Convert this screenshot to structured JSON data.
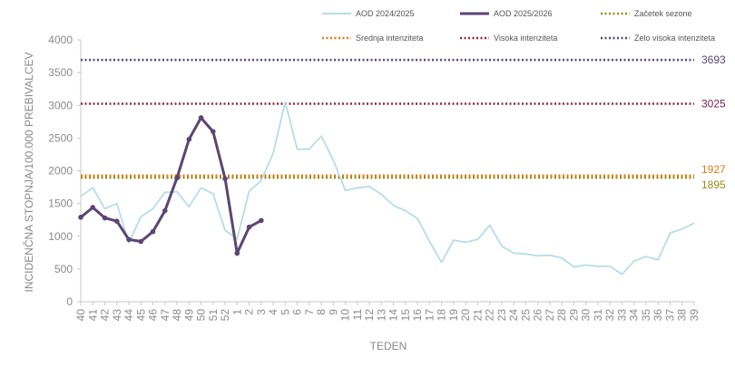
{
  "chart_data": {
    "type": "line",
    "xlabel": "TEDEN",
    "ylabel": "INCIDENČNA  STOPNJA/100.000  PREBIVALCEV",
    "ylim": [
      0,
      4000
    ],
    "yticks": [
      0,
      500,
      1000,
      1500,
      2000,
      2500,
      3000,
      3500,
      4000
    ],
    "grid": false,
    "legend_position": "top",
    "categories": [
      "40",
      "41",
      "42",
      "43",
      "44",
      "45",
      "46",
      "47",
      "48",
      "49",
      "50",
      "51",
      "52",
      "1",
      "2",
      "3",
      "4",
      "5",
      "6",
      "7",
      "8",
      "9",
      "10",
      "11",
      "12",
      "13",
      "14",
      "15",
      "16",
      "17",
      "18",
      "19",
      "20",
      "21",
      "22",
      "23",
      "24",
      "25",
      "26",
      "27",
      "28",
      "29",
      "30",
      "31",
      "32",
      "33",
      "34",
      "35",
      "36",
      "37",
      "38",
      "39"
    ],
    "series": [
      {
        "name": "AOD 2024/2025",
        "color": "#b7dde6",
        "values": [
          1610,
          1740,
          1420,
          1500,
          900,
          1300,
          1420,
          1670,
          1680,
          1450,
          1740,
          1650,
          1090,
          960,
          1690,
          1850,
          2270,
          3050,
          2330,
          2330,
          2530,
          2160,
          1700,
          1740,
          1760,
          1640,
          1470,
          1390,
          1270,
          920,
          600,
          940,
          910,
          950,
          1170,
          850,
          740,
          730,
          700,
          710,
          670,
          530,
          560,
          540,
          540,
          420,
          620,
          690,
          640,
          1050,
          1110,
          1200
        ]
      },
      {
        "name": "AOD 2025/2026",
        "color": "#5a4673",
        "values": [
          1290,
          1440,
          1280,
          1230,
          950,
          920,
          1070,
          1390,
          1890,
          2480,
          2810,
          2600,
          1880,
          740,
          1140,
          1240,
          null,
          null,
          null,
          null,
          null,
          null,
          null,
          null,
          null,
          null,
          null,
          null,
          null,
          null,
          null,
          null,
          null,
          null,
          null,
          null,
          null,
          null,
          null,
          null,
          null,
          null,
          null,
          null,
          null,
          null,
          null,
          null,
          null,
          null,
          null,
          null
        ]
      }
    ],
    "thresholds": [
      {
        "name": "Začetek sezone",
        "value": 1895,
        "label": "1895",
        "color": "#9a8a1a",
        "label_color": "#9a8a1a"
      },
      {
        "name": "Srednja intenziteta",
        "value": 1927,
        "label": "1927",
        "color": "#e07b1a",
        "label_color": "#e07b1a"
      },
      {
        "name": "Visoka intenziteta",
        "value": 3025,
        "label": "3025",
        "color": "#8b2a3a",
        "label_color": "#7a1f4a"
      },
      {
        "name": "Zelo visoka intenziteta",
        "value": 3693,
        "label": "3693",
        "color": "#5a4673",
        "label_color": "#5a4673"
      }
    ]
  }
}
